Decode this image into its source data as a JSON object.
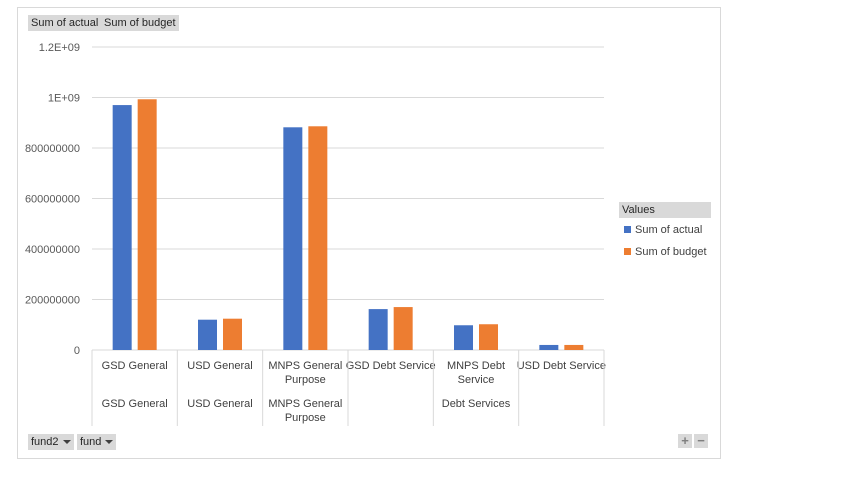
{
  "value_buttons": [
    "Sum of actual",
    "Sum of budget"
  ],
  "row_buttons": [
    "fund2",
    "fund"
  ],
  "zoom": {
    "plus": "+",
    "minus": "−"
  },
  "legend": {
    "title": "Values",
    "items": [
      {
        "label": "Sum of actual",
        "color": "#4472c4"
      },
      {
        "label": "Sum of budget",
        "color": "#ed7d31"
      }
    ]
  },
  "chart_data": {
    "type": "bar",
    "categories": [
      {
        "label": [
          "GSD General"
        ],
        "group": [
          "GSD General"
        ]
      },
      {
        "label": [
          "USD General"
        ],
        "group": [
          "USD General"
        ]
      },
      {
        "label": [
          "MNPS General",
          "Purpose"
        ],
        "group": [
          "MNPS General",
          "Purpose"
        ]
      },
      {
        "label": [
          "GSD Debt Service"
        ],
        "group": [
          "Debt Services"
        ]
      },
      {
        "label": [
          "MNPS Debt",
          "Service"
        ],
        "group": [
          "Debt Services"
        ]
      },
      {
        "label": [
          "USD Debt Service"
        ],
        "group": [
          "Debt Services"
        ]
      }
    ],
    "groups": [
      {
        "label": [
          "GSD General"
        ],
        "span": 1
      },
      {
        "label": [
          "USD General"
        ],
        "span": 1
      },
      {
        "label": [
          "MNPS General",
          "Purpose"
        ],
        "span": 1
      },
      {
        "label": [
          "Debt Services"
        ],
        "span": 3
      }
    ],
    "series": [
      {
        "name": "Sum of actual",
        "color": "#4472c4",
        "values": [
          970000000,
          120000000,
          882000000,
          162000000,
          98000000,
          20000000
        ]
      },
      {
        "name": "Sum of budget",
        "color": "#ed7d31",
        "values": [
          993000000,
          124000000,
          886000000,
          170000000,
          102000000,
          20000000
        ]
      }
    ],
    "ylim": [
      0,
      1200000000
    ],
    "yticks": [
      {
        "value": 0,
        "label": "0"
      },
      {
        "value": 200000000,
        "label": "200000000"
      },
      {
        "value": 400000000,
        "label": "400000000"
      },
      {
        "value": 600000000,
        "label": "600000000"
      },
      {
        "value": 800000000,
        "label": "800000000"
      },
      {
        "value": 1000000000,
        "label": "1E+09"
      },
      {
        "value": 1200000000,
        "label": "1.2E+09"
      }
    ],
    "grid": true,
    "legend_position": "right"
  }
}
